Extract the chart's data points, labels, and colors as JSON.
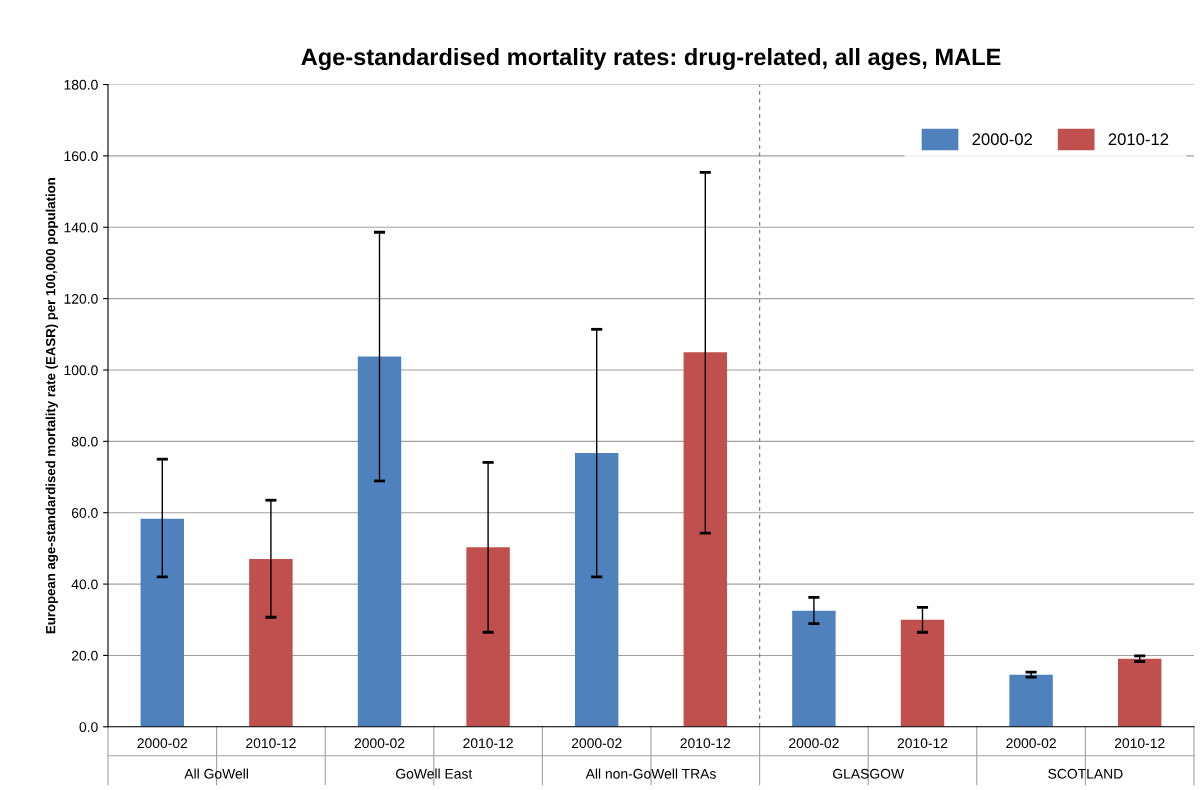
{
  "chart_data": {
    "type": "bar",
    "title": "Age-standardised mortality rates: drug-related, all ages, MALE",
    "ylabel": "European age-standardised mortality rate (EASR) per 100,000 population",
    "categories": [
      "2000-02",
      "2010-12",
      "2000-02",
      "2010-12",
      "2000-02",
      "2010-12",
      "2000-02",
      "2010-12",
      "2000-02",
      "2010-12"
    ],
    "annotations": [
      "All GoWell",
      "GoWell East",
      "All non-GoWell TRAs",
      "GLASGOW",
      "SCOTLAND"
    ],
    "series": [
      {
        "name": "2000-02",
        "color": "#4f81bd",
        "values": [
          58.3,
          null,
          103.8,
          null,
          76.7,
          null,
          32.5,
          null,
          14.6,
          null
        ],
        "errors": [
          [
            42.0,
            75.0
          ],
          null,
          [
            68.9,
            138.6
          ],
          null,
          [
            42.0,
            111.4
          ],
          null,
          [
            28.9,
            36.3
          ],
          null,
          [
            13.9,
            15.3
          ],
          null
        ]
      },
      {
        "name": "2010-12",
        "color": "#c0504d",
        "values": [
          null,
          47.0,
          null,
          50.3,
          null,
          105.0,
          null,
          30.0,
          null,
          19.1
        ],
        "errors": [
          null,
          [
            30.7,
            63.5
          ],
          null,
          [
            26.5,
            74.1
          ],
          null,
          [
            54.3,
            155.4
          ],
          null,
          [
            26.5,
            33.5
          ],
          null,
          [
            18.3,
            19.9
          ]
        ]
      }
    ],
    "ylim": [
      0,
      180
    ],
    "yticks": [
      {
        "value": 0,
        "label": "0.0"
      },
      {
        "value": 20,
        "label": "20.0"
      },
      {
        "value": 40,
        "label": "40.0"
      },
      {
        "value": 60,
        "label": "60.0"
      },
      {
        "value": 80,
        "label": "80.0"
      },
      {
        "value": 100,
        "label": "100.0"
      },
      {
        "value": 120,
        "label": "120.0"
      },
      {
        "value": 140,
        "label": "140.0"
      },
      {
        "value": 160,
        "label": "160.0"
      },
      {
        "value": 180,
        "label": "180.0"
      }
    ],
    "grid": "y",
    "legend": "top right"
  }
}
